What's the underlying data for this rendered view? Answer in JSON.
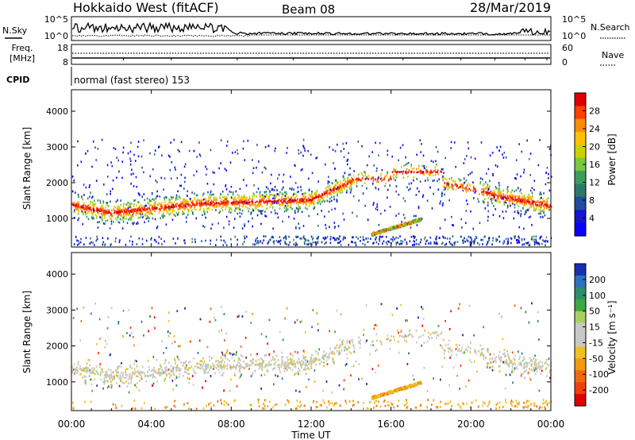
{
  "header": {
    "title": "Hokkaido West (fitACF)",
    "beam": "Beam 08",
    "date": "28/Mar/2019"
  },
  "noise_panel": {
    "left_label": "N.Sky",
    "right_label": "N.Search",
    "left_ticks": [
      "10^5",
      "10^0"
    ],
    "right_ticks": [
      "10^5",
      "10^0"
    ]
  },
  "freq_panel": {
    "left_label_1": "Freq.",
    "left_label_2": "[MHz]",
    "left_ticks": [
      "18",
      "8"
    ],
    "right_ticks": [
      "60",
      "0"
    ],
    "right_label": "Nave"
  },
  "cpid": {
    "label": "CPID",
    "text": "normal (fast stereo) 153"
  },
  "chart_data": [
    {
      "type": "heatmap",
      "name": "power",
      "ylabel": "Slant Range [km]",
      "ylim": [
        200,
        4600
      ],
      "yticks": [
        1000,
        2000,
        3000,
        4000
      ],
      "colorbar": {
        "label": "Power [dB]",
        "ticks": [
          "28",
          "24",
          "20",
          "16",
          "12",
          "8",
          "4"
        ],
        "colors": [
          "#e00000",
          "#ff4000",
          "#ff8c00",
          "#ffc000",
          "#c8d200",
          "#78c840",
          "#3c9c5a",
          "#2a7a6a",
          "#1e4c9e",
          "#1414d2",
          "#0a00ff"
        ]
      },
      "grid": false
    },
    {
      "type": "heatmap",
      "name": "velocity",
      "ylabel": "Slant Range [km]",
      "ylim": [
        200,
        4600
      ],
      "yticks": [
        1000,
        2000,
        3000,
        4000
      ],
      "xlabel": "Time UT",
      "xticks": [
        "00:00",
        "04:00",
        "08:00",
        "12:00",
        "16:00",
        "20:00",
        "00:00"
      ],
      "colorbar": {
        "label": "Velocity [m s⁻¹]",
        "ticks": [
          "200",
          "100",
          "50",
          "15",
          "-15",
          "-50",
          "-100",
          "-200"
        ],
        "colors": [
          "#1a2fb0",
          "#2a72c0",
          "#2c8c6c",
          "#3aa844",
          "#a8d060",
          "#c8c8c8",
          "#c8c8c8",
          "#f0c020",
          "#f09a10",
          "#f06a10",
          "#f04010",
          "#e00000"
        ]
      },
      "grid": false
    }
  ]
}
